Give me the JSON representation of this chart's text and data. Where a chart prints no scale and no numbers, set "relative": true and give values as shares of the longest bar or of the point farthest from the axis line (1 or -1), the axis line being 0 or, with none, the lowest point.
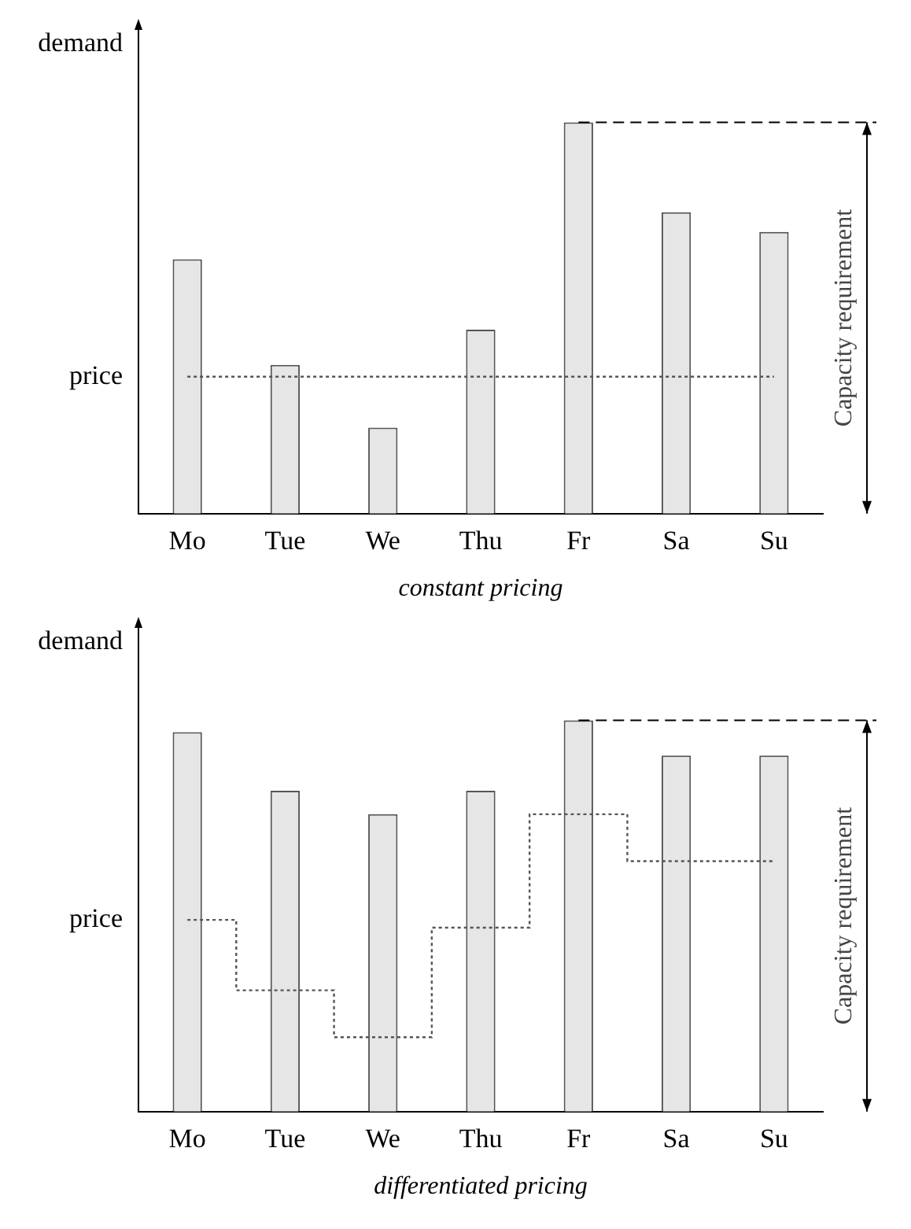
{
  "chart_data": [
    {
      "type": "bar",
      "relative": true,
      "categories": [
        "Mo",
        "Tue",
        "We",
        "Thu",
        "Fr",
        "Sa",
        "Su"
      ],
      "xlabel": "constant pricing",
      "ylabel": "demand",
      "legend": false,
      "grid": false,
      "series": [
        {
          "color": "#e6e6e6",
          "values": [
            0.65,
            0.38,
            0.22,
            0.47,
            1,
            0.77,
            0.72
          ]
        },
        {
          "type": "step",
          "name": "price",
          "color": "#555555",
          "line_style": "dotted",
          "values": [
            0.35,
            0.35,
            0.35,
            0.35,
            0.35,
            0.35,
            0.35
          ]
        }
      ],
      "ref_lines": [
        {
          "axis": "y",
          "value": 1,
          "line_style": "dashed"
        }
      ],
      "annotations": [
        "Capacity requirement"
      ]
    },
    {
      "type": "bar",
      "relative": true,
      "categories": [
        "Mo",
        "Tue",
        "We",
        "Thu",
        "Fr",
        "Sa",
        "Su"
      ],
      "xlabel": "differentiated pricing",
      "ylabel": "demand",
      "legend": false,
      "grid": false,
      "series": [
        {
          "color": "#e6e6e6",
          "values": [
            0.97,
            0.82,
            0.76,
            0.82,
            1,
            0.91,
            0.91
          ]
        },
        {
          "type": "step",
          "name": "price",
          "color": "#555555",
          "line_style": "dotted",
          "values": [
            0.49,
            0.31,
            0.19,
            0.47,
            0.76,
            0.64,
            0.64
          ]
        }
      ],
      "ref_lines": [
        {
          "axis": "y",
          "value": 1,
          "line_style": "dashed"
        }
      ],
      "annotations": [
        "Capacity requirement"
      ]
    }
  ]
}
